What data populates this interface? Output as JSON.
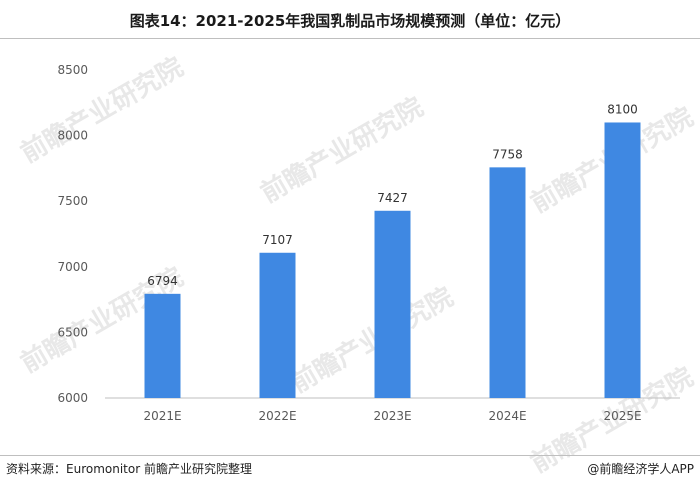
{
  "title": "图表14：2021-2025年我国乳制品市场规模预测（单位：亿元）",
  "source": "资料来源：Euromonitor 前瞻产业研究院整理",
  "brand": "@前瞻经济学人APP",
  "watermark": "前瞻产业研究院",
  "colors": {
    "bar": "#3f88e2",
    "axis": "#bfbfbf",
    "text": "#595959"
  },
  "chart_data": {
    "type": "bar",
    "title": "图表14：2021-2025年我国乳制品市场规模预测（单位：亿元）",
    "categories": [
      "2021E",
      "2022E",
      "2023E",
      "2024E",
      "2025E"
    ],
    "values": [
      6794,
      7107,
      7427,
      7758,
      8100
    ],
    "ylim": [
      6000,
      8500
    ],
    "yticks": [
      6000,
      6500,
      7000,
      7500,
      8000,
      8500
    ],
    "grid": false,
    "data_labels": true,
    "xlabel": "",
    "ylabel": ""
  }
}
